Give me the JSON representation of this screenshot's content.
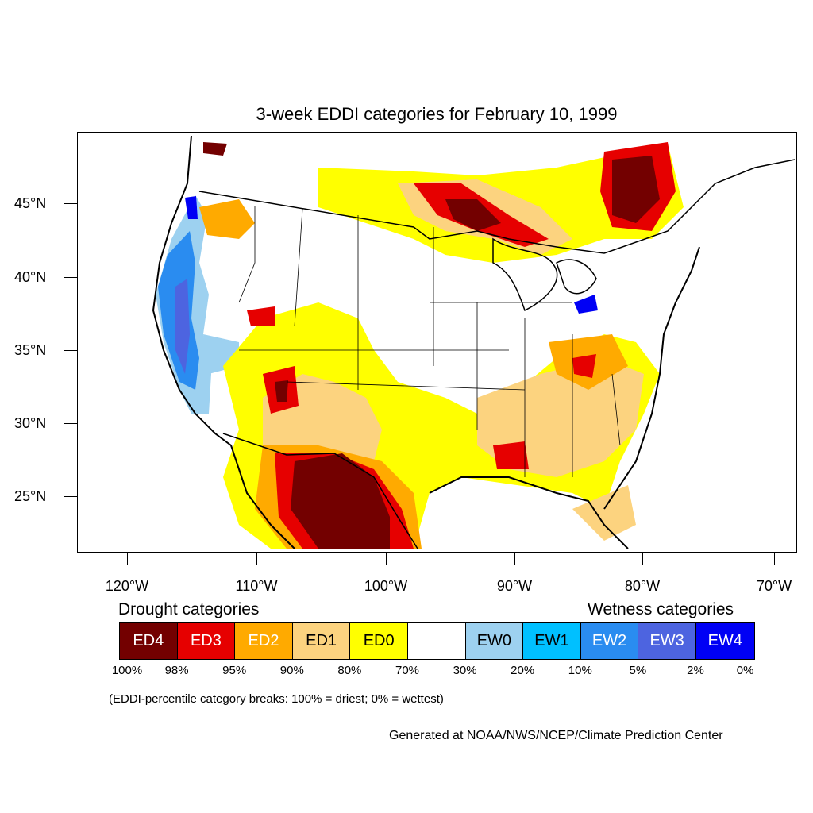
{
  "title": "3-week EDDI categories for February 10, 1999",
  "lat_labels": [
    "45°N",
    "40°N",
    "35°N",
    "30°N",
    "25°N"
  ],
  "lon_labels": [
    "120°W",
    "110°W",
    "100°W",
    "90°W",
    "80°W",
    "70°W"
  ],
  "legend": {
    "drought_heading": "Drought categories",
    "wetness_heading": "Wetness categories",
    "categories": [
      {
        "label": "ED4",
        "color": "#730000",
        "text_color": "#ffffff"
      },
      {
        "label": "ED3",
        "color": "#e60000",
        "text_color": "#ffffff"
      },
      {
        "label": "ED2",
        "color": "#ffaa00",
        "text_color": "#ffffff"
      },
      {
        "label": "ED1",
        "color": "#fcd37f",
        "text_color": "#000000"
      },
      {
        "label": "ED0",
        "color": "#ffff00",
        "text_color": "#000000"
      },
      {
        "label": "",
        "color": "#ffffff",
        "text_color": "#000000"
      },
      {
        "label": "EW0",
        "color": "#9dd1f0",
        "text_color": "#000000"
      },
      {
        "label": "EW1",
        "color": "#00c0ff",
        "text_color": "#000000"
      },
      {
        "label": "EW2",
        "color": "#2a8cf0",
        "text_color": "#ffffff"
      },
      {
        "label": "EW3",
        "color": "#4d64e0",
        "text_color": "#ffffff"
      },
      {
        "label": "EW4",
        "color": "#0000f5",
        "text_color": "#ffffff"
      }
    ],
    "percentiles": [
      "100%",
      "98%",
      "95%",
      "90%",
      "80%",
      "70%",
      "30%",
      "20%",
      "10%",
      "5%",
      "2%",
      "0%"
    ]
  },
  "note": "(EDDI-percentile category breaks: 100% = driest; 0% = wettest)",
  "credit": "Generated at NOAA/NWS/NCEP/Climate Prediction Center"
}
